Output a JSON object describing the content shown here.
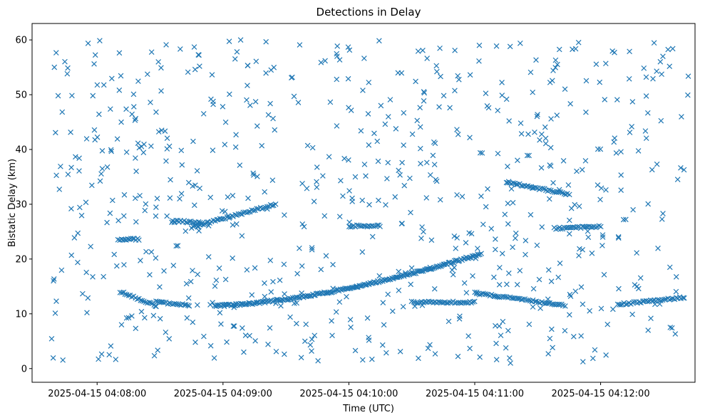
{
  "chart_data": {
    "type": "scatter",
    "title": "Detections in Delay",
    "xlabel": "Time (UTC)",
    "ylabel": "Bistatic Delay (km)",
    "marker": "x",
    "marker_color": "#1f77b4",
    "x_unit": "seconds since 2025-04-15 04:07:00",
    "xlim": [
      29,
      345
    ],
    "ylim": [
      -2.5,
      63
    ],
    "x_ticks": [
      {
        "value": 60,
        "label": "2025-04-15 04:08:00"
      },
      {
        "value": 120,
        "label": "2025-04-15 04:09:00"
      },
      {
        "value": 180,
        "label": "2025-04-15 04:10:00"
      },
      {
        "value": 240,
        "label": "2025-04-15 04:11:00"
      },
      {
        "value": 300,
        "label": "2025-04-15 04:12:00"
      }
    ],
    "y_ticks": [
      {
        "value": 0,
        "label": "0"
      },
      {
        "value": 10,
        "label": "10"
      },
      {
        "value": 20,
        "label": "20"
      },
      {
        "value": 30,
        "label": "30"
      },
      {
        "value": 40,
        "label": "40"
      },
      {
        "value": 50,
        "label": "50"
      },
      {
        "value": 60,
        "label": "60"
      }
    ],
    "tracks": [
      {
        "name": "track-low-a",
        "x_start": 71,
        "x_end": 88,
        "y_start": 14.0,
        "y_end": 11.5,
        "step": 0.8
      },
      {
        "name": "track-low-b",
        "x_start": 88,
        "x_end": 104,
        "y_start": 12.2,
        "y_end": 11.5,
        "step": 0.8
      },
      {
        "name": "track-rising",
        "x_start": 116,
        "x_end": 243,
        "y_start": 11.5,
        "y_end": 21.0,
        "step": 0.6
      },
      {
        "name": "track-mid-flat",
        "x_start": 210,
        "x_end": 240,
        "y_start": 12.1,
        "y_end": 12.1,
        "step": 0.8
      },
      {
        "name": "track-mid-desc",
        "x_start": 240,
        "x_end": 283,
        "y_start": 13.8,
        "y_end": 11.5,
        "step": 0.8
      },
      {
        "name": "track-late-rise",
        "x_start": 308,
        "x_end": 340,
        "y_start": 11.7,
        "y_end": 13.0,
        "step": 0.8
      },
      {
        "name": "track-upper-a",
        "x_start": 105,
        "x_end": 145,
        "y_start": 25.8,
        "y_end": 30.0,
        "step": 0.8
      },
      {
        "name": "track-upper-flat",
        "x_start": 96,
        "x_end": 110,
        "y_start": 27.0,
        "y_end": 26.6,
        "step": 0.8
      },
      {
        "name": "track-upper-b",
        "x_start": 255,
        "x_end": 285,
        "y_start": 34.0,
        "y_end": 31.8,
        "step": 0.8
      },
      {
        "name": "track-upper-c",
        "x_start": 278,
        "x_end": 300,
        "y_start": 25.6,
        "y_end": 25.9,
        "step": 0.8
      },
      {
        "name": "track-left-flat",
        "x_start": 70,
        "x_end": 80,
        "y_start": 23.6,
        "y_end": 23.6,
        "step": 0.8
      },
      {
        "name": "track-upper-d",
        "x_start": 180,
        "x_end": 195,
        "y_start": 26.0,
        "y_end": 26.1,
        "step": 0.8
      }
    ],
    "clutter": {
      "count": 700,
      "x_range": [
        38,
        342
      ],
      "y_range": [
        1,
        60
      ]
    }
  }
}
